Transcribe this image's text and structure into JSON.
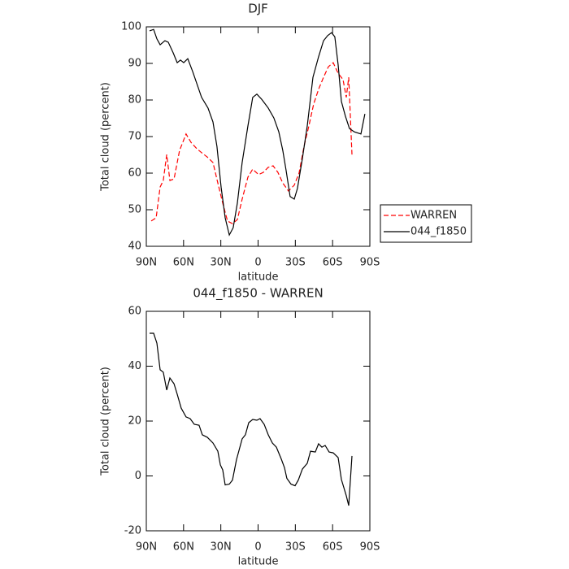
{
  "chart_data": [
    {
      "type": "line",
      "title": "DJF",
      "x_label": "latitude",
      "y_label": "Total cloud (percent)",
      "xlim": [
        90,
        -90
      ],
      "ylim": [
        40,
        100
      ],
      "xticks": [
        {
          "value": 90,
          "label": "90N"
        },
        {
          "value": 60,
          "label": "60N"
        },
        {
          "value": 30,
          "label": "30N"
        },
        0,
        {
          "value": -30,
          "label": "30S"
        },
        {
          "value": -60,
          "label": "60S"
        },
        {
          "value": -90,
          "label": "90S"
        }
      ],
      "yticks": [
        40,
        50,
        60,
        70,
        80,
        90,
        100
      ],
      "legend": "right",
      "series": [
        {
          "name": "WARREN",
          "color": "#ff0000",
          "dashed": true,
          "x": [
            86.1,
            82.1,
            78.9,
            76.3,
            73.6,
            71,
            67.7,
            63.2,
            58,
            54,
            49.4,
            45.5,
            40.9,
            36.3,
            32.4,
            28.5,
            24.6,
            20.6,
            16.7,
            12.8,
            8.2,
            4.3,
            -0.3,
            -4.2,
            -8.2,
            -12.1,
            -16,
            -19.9,
            -24.5,
            -29.1,
            -33,
            -37,
            -40.9,
            -44.8,
            -48.7,
            -52.7,
            -56.6,
            -60.5,
            -64.5,
            -68.4,
            -71,
            -73,
            -75.6
          ],
          "values": [
            46.9,
            47.8,
            56.2,
            58,
            65.1,
            58,
            58.4,
            66.2,
            70.7,
            68.4,
            66.7,
            65.6,
            64.4,
            62.9,
            57.3,
            51.8,
            46.9,
            46.2,
            47.3,
            52.9,
            58.9,
            61.1,
            59.6,
            60.2,
            61.6,
            62,
            60.2,
            57.3,
            55.1,
            56.7,
            60,
            67.3,
            72.9,
            78.9,
            82.9,
            86.2,
            89.1,
            90.2,
            87.3,
            85.6,
            80.7,
            86.2,
            65.1
          ]
        },
        {
          "name": "044_f1850",
          "color": "#000000",
          "dashed": false,
          "x": [
            87.4,
            84.1,
            81.5,
            78.9,
            75,
            72.3,
            68.4,
            65.1,
            62.5,
            59.9,
            56.6,
            52.7,
            45.5,
            40.3,
            36.3,
            33.1,
            29.8,
            26.5,
            23.2,
            20,
            16.7,
            12.8,
            8.2,
            4.3,
            1,
            -2.9,
            -8.2,
            -12.7,
            -16.7,
            -19.9,
            -22.6,
            -25.8,
            -29.1,
            -31.7,
            -35.7,
            -39.6,
            -44.2,
            -48.7,
            -52.7,
            -56,
            -59.2,
            -61.8,
            -64.5,
            -67.1,
            -70.3,
            -73.6,
            -77.5,
            -82.8,
            -86
          ],
          "values": [
            98.9,
            99.3,
            96.7,
            95.1,
            96.2,
            95.8,
            92.9,
            90.2,
            90.9,
            90.2,
            91.3,
            87.8,
            80.7,
            77.8,
            74,
            67.3,
            56.2,
            47.8,
            43.1,
            45.1,
            51.8,
            62.9,
            72.9,
            80.7,
            81.6,
            80.2,
            77.8,
            75.1,
            71.3,
            66.2,
            60.7,
            53.6,
            52.9,
            55.8,
            64,
            72.9,
            86.2,
            91.8,
            96.2,
            97.6,
            98.4,
            97.3,
            89.6,
            79.6,
            75.6,
            72.2,
            71.3,
            70.7,
            76.2
          ]
        }
      ]
    },
    {
      "type": "line",
      "title": "044_f1850 - WARREN",
      "x_label": "latitude",
      "y_label": "Total cloud (percent)",
      "xlim": [
        90,
        -90
      ],
      "ylim": [
        -20,
        60
      ],
      "xticks": [
        {
          "value": 90,
          "label": "90N"
        },
        {
          "value": 60,
          "label": "60N"
        },
        {
          "value": 30,
          "label": "30N"
        },
        0,
        {
          "value": -30,
          "label": "30S"
        },
        {
          "value": -60,
          "label": "60S"
        },
        {
          "value": -90,
          "label": "90S"
        }
      ],
      "yticks": [
        -20,
        0,
        20,
        40,
        60
      ],
      "series": [
        {
          "color": "#000000",
          "dashed": false,
          "x": [
            87.4,
            84.1,
            81.5,
            78.9,
            76.3,
            73.6,
            71,
            67.7,
            65.1,
            61.9,
            58,
            54.7,
            51.4,
            47.5,
            44.9,
            40.9,
            36.3,
            32.4,
            30.4,
            28.5,
            26.5,
            23.2,
            20.6,
            17.4,
            12.8,
            10.2,
            7.5,
            4.3,
            1,
            -1.6,
            -4.9,
            -8.2,
            -11.5,
            -14.7,
            -18.7,
            -21.3,
            -23.2,
            -26.5,
            -29.8,
            -32.4,
            -35.7,
            -39.6,
            -42.2,
            -46.1,
            -48.7,
            -51.4,
            -54,
            -57.2,
            -60.5,
            -64.5,
            -67.1,
            -71,
            -73,
            -75.6
          ],
          "values": [
            52,
            52,
            48.4,
            38.7,
            37.8,
            31.3,
            35.7,
            33.6,
            29.8,
            24.7,
            21.5,
            20.9,
            18.8,
            18.5,
            15,
            14.1,
            12,
            9,
            4,
            2.2,
            -3.3,
            -3,
            -1.5,
            5.9,
            13.5,
            15,
            19.4,
            20.6,
            20.3,
            20.9,
            18.8,
            15,
            12,
            10.5,
            6.1,
            3,
            -0.9,
            -3,
            -3.6,
            -1.5,
            2.5,
            4.6,
            9,
            8.7,
            11.7,
            10.5,
            11.1,
            8.7,
            8.4,
            6.7,
            -1.3,
            -7.2,
            -10.8,
            7.3
          ]
        }
      ]
    }
  ]
}
